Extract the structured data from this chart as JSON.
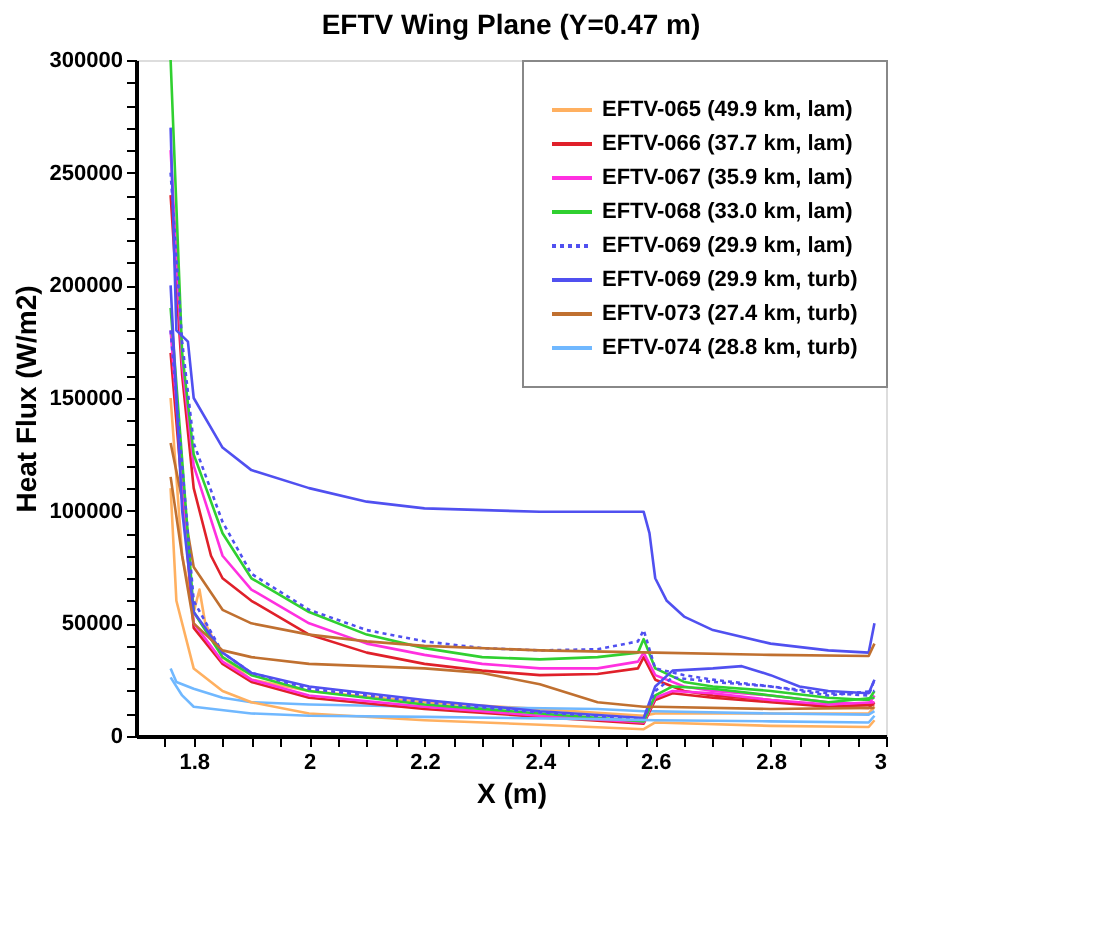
{
  "chart_data": {
    "type": "line",
    "title": "EFTV Wing Plane (Y=0.47 m)",
    "xlabel": "X (m)",
    "ylabel": "Heat Flux (W/m2)",
    "xlim": [
      1.7,
      3
    ],
    "ylim": [
      0,
      300000
    ],
    "xticks": [
      {
        "value": 1.75,
        "label": null
      },
      1.8,
      {
        "value": 1.85,
        "label": null
      },
      {
        "value": 1.9,
        "label": null
      },
      {
        "value": 1.95,
        "label": null
      },
      2,
      {
        "value": 2.05,
        "label": null
      },
      {
        "value": 2.1,
        "label": null
      },
      {
        "value": 2.15,
        "label": null
      },
      2.2,
      {
        "value": 2.25,
        "label": null
      },
      {
        "value": 2.3,
        "label": null
      },
      {
        "value": 2.35,
        "label": null
      },
      2.4,
      {
        "value": 2.45,
        "label": null
      },
      {
        "value": 2.5,
        "label": null
      },
      {
        "value": 2.55,
        "label": null
      },
      2.6,
      {
        "value": 2.65,
        "label": null
      },
      {
        "value": 2.7,
        "label": null
      },
      {
        "value": 2.75,
        "label": null
      },
      2.8,
      {
        "value": 2.85,
        "label": null
      },
      {
        "value": 2.9,
        "label": null
      },
      {
        "value": 2.95,
        "label": null
      },
      3
    ],
    "yticks": [
      0,
      {
        "value": 10000,
        "label": null
      },
      {
        "value": 20000,
        "label": null
      },
      {
        "value": 30000,
        "label": null
      },
      {
        "value": 40000,
        "label": null
      },
      50000,
      {
        "value": 60000,
        "label": null
      },
      {
        "value": 70000,
        "label": null
      },
      {
        "value": 80000,
        "label": null
      },
      {
        "value": 90000,
        "label": null
      },
      100000,
      {
        "value": 110000,
        "label": null
      },
      {
        "value": 120000,
        "label": null
      },
      {
        "value": 130000,
        "label": null
      },
      {
        "value": 140000,
        "label": null
      },
      150000,
      {
        "value": 160000,
        "label": null
      },
      {
        "value": 170000,
        "label": null
      },
      {
        "value": 180000,
        "label": null
      },
      {
        "value": 190000,
        "label": null
      },
      200000,
      {
        "value": 210000,
        "label": null
      },
      {
        "value": 220000,
        "label": null
      },
      {
        "value": 230000,
        "label": null
      },
      {
        "value": 240000,
        "label": null
      },
      250000,
      {
        "value": 260000,
        "label": null
      },
      {
        "value": 270000,
        "label": null
      },
      {
        "value": 280000,
        "label": null
      },
      {
        "value": 290000,
        "label": null
      },
      300000
    ],
    "grid": false,
    "legend": "top right",
    "series": [
      {
        "name": "EFTV-065 (49.9 km, lam)",
        "color": "#ffb060",
        "x": [
          1.76,
          1.78,
          1.8,
          1.81,
          1.82,
          1.85,
          1.9,
          2.0,
          2.2,
          2.4,
          2.58,
          2.6,
          2.8,
          2.97,
          2.98
        ],
        "values": [
          150000,
          80000,
          55000,
          65000,
          50000,
          35000,
          25000,
          20000,
          15000,
          12000,
          9000,
          10000,
          10000,
          10000,
          13000
        ]
      },
      {
        "name": "EFTV-066 (37.7 km, lam)",
        "color": "#e0202a",
        "x": [
          1.76,
          1.78,
          1.8,
          1.83,
          1.85,
          1.9,
          2.0,
          2.1,
          2.2,
          2.3,
          2.4,
          2.5,
          2.57,
          2.58,
          2.6,
          2.65,
          2.7,
          2.8,
          2.9,
          2.97,
          2.98
        ],
        "values": [
          240000,
          160000,
          110000,
          80000,
          70000,
          60000,
          45000,
          37000,
          32000,
          29000,
          27000,
          27500,
          30000,
          35000,
          25000,
          20000,
          18000,
          16000,
          13000,
          12500,
          15000
        ]
      },
      {
        "name": "EFTV-067 (35.9 km, lam)",
        "color": "#ff30e0",
        "x": [
          1.76,
          1.78,
          1.8,
          1.85,
          1.9,
          2.0,
          2.1,
          2.2,
          2.3,
          2.4,
          2.5,
          2.57,
          2.58,
          2.6,
          2.65,
          2.7,
          2.8,
          2.9,
          2.97,
          2.98
        ],
        "values": [
          260000,
          165000,
          120000,
          80000,
          65000,
          50000,
          41000,
          36000,
          32000,
          30000,
          30000,
          33000,
          37000,
          27000,
          22000,
          20000,
          18000,
          15000,
          14000,
          18000
        ]
      },
      {
        "name": "EFTV-068 (33.0 km, lam)",
        "color": "#30d030",
        "x": [
          1.76,
          1.78,
          1.8,
          1.85,
          1.9,
          2.0,
          2.1,
          2.2,
          2.3,
          2.4,
          2.5,
          2.57,
          2.58,
          2.6,
          2.65,
          2.7,
          2.8,
          2.9,
          2.97,
          2.98
        ],
        "values": [
          300000,
          170000,
          125000,
          90000,
          70000,
          55000,
          45000,
          39000,
          35000,
          34000,
          35000,
          37000,
          43000,
          30000,
          24000,
          22000,
          20000,
          17000,
          16000,
          20000
        ]
      },
      {
        "name": "EFTV-069 (29.9 km, lam)",
        "color": "#5050f0",
        "line_style": "dotted",
        "x": [
          1.76,
          1.78,
          1.8,
          1.85,
          1.9,
          2.0,
          2.1,
          2.2,
          2.3,
          2.4,
          2.5,
          2.57,
          2.58,
          2.6,
          2.65,
          2.7,
          2.8,
          2.9,
          2.97,
          2.98
        ],
        "values": [
          250000,
          175000,
          130000,
          95000,
          72000,
          56000,
          47000,
          42000,
          39000,
          38000,
          38500,
          42000,
          47000,
          30000,
          27000,
          25000,
          22000,
          19000,
          18000,
          25000
        ]
      },
      {
        "name": "EFTV-069 (29.9 km, turb)",
        "color": "#5050f0",
        "x": [
          1.76,
          1.77,
          1.79,
          1.8,
          1.85,
          1.9,
          2.0,
          2.1,
          2.2,
          2.4,
          2.58,
          2.59,
          2.6,
          2.62,
          2.65,
          2.7,
          2.8,
          2.9,
          2.97,
          2.98
        ],
        "values": [
          270000,
          180000,
          175000,
          150000,
          128000,
          118000,
          110000,
          104000,
          101000,
          99500,
          99500,
          90000,
          70000,
          60000,
          53000,
          47000,
          41000,
          38000,
          37000,
          50000
        ]
      },
      {
        "name": "EFTV-073 (27.4 km, turb)",
        "color": "#c07030",
        "x": [
          1.76,
          1.78,
          1.8,
          1.85,
          1.9,
          2.0,
          2.1,
          2.2,
          2.4,
          2.6,
          2.8,
          2.97,
          2.98
        ],
        "values": [
          130000,
          105000,
          75000,
          56000,
          50000,
          45000,
          42000,
          40000,
          38000,
          37000,
          36000,
          35500,
          41000
        ]
      },
      {
        "name": "EFTV-074 (28.8 km, turb)",
        "color": "#70b8ff",
        "x": [
          1.76,
          1.77,
          1.8,
          1.85,
          1.9,
          2.0,
          2.2,
          2.5,
          2.58,
          2.6,
          2.8,
          2.97,
          2.98
        ],
        "values": [
          30000,
          24000,
          21000,
          17000,
          15000,
          14000,
          13000,
          12000,
          11000,
          11000,
          10000,
          9500,
          11000
        ]
      },
      {
        "color": "#ffb060",
        "x": [
          1.76,
          1.77,
          1.8,
          1.85,
          1.9,
          2.0,
          2.2,
          2.4,
          2.58,
          2.6,
          2.8,
          2.97,
          2.98
        ],
        "values": [
          110000,
          60000,
          30000,
          20000,
          15000,
          10000,
          7000,
          5000,
          3000,
          6000,
          4500,
          4000,
          7000
        ]
      },
      {
        "color": "#e0202a",
        "x": [
          1.76,
          1.8,
          1.85,
          1.9,
          2.0,
          2.2,
          2.4,
          2.58,
          2.6,
          2.63,
          2.7,
          2.8,
          2.9,
          2.98
        ],
        "values": [
          170000,
          48000,
          32000,
          24000,
          17000,
          12000,
          8500,
          5500,
          16000,
          19000,
          17000,
          15000,
          13000,
          14000
        ]
      },
      {
        "color": "#ff30e0",
        "x": [
          1.76,
          1.8,
          1.85,
          1.9,
          2.0,
          2.2,
          2.4,
          2.58,
          2.6,
          2.63,
          2.7,
          2.8,
          2.9,
          2.98
        ],
        "values": [
          180000,
          50000,
          33000,
          25000,
          18000,
          13000,
          9000,
          6000,
          17000,
          20000,
          19000,
          16000,
          14000,
          15000
        ]
      },
      {
        "color": "#30d030",
        "x": [
          1.76,
          1.8,
          1.85,
          1.9,
          2.0,
          2.2,
          2.4,
          2.58,
          2.6,
          2.63,
          2.7,
          2.8,
          2.9,
          2.98
        ],
        "values": [
          190000,
          55000,
          35000,
          27000,
          20000,
          14000,
          10000,
          6500,
          18000,
          22000,
          21000,
          18000,
          15000,
          17000
        ]
      },
      {
        "color": "#5050f0",
        "line_style": "dotted",
        "x": [
          1.76,
          1.8,
          1.85,
          1.9,
          2.0,
          2.2,
          2.4,
          2.58,
          2.6,
          2.63,
          2.7,
          2.8,
          2.9,
          2.98
        ],
        "values": [
          180000,
          60000,
          37000,
          28000,
          21000,
          15000,
          10500,
          7500,
          20000,
          26000,
          24000,
          22000,
          18000,
          20000
        ]
      },
      {
        "color": "#5050f0",
        "x": [
          1.76,
          1.78,
          1.8,
          1.82,
          1.85,
          1.9,
          2.0,
          2.2,
          2.4,
          2.58,
          2.6,
          2.63,
          2.7,
          2.75,
          2.8,
          2.85,
          2.9,
          2.97,
          2.98
        ],
        "values": [
          200000,
          100000,
          55000,
          48000,
          37000,
          28000,
          22000,
          16000,
          11000,
          8000,
          22000,
          29000,
          30000,
          31000,
          27000,
          22000,
          20000,
          19000,
          25000
        ]
      },
      {
        "color": "#c07030",
        "x": [
          1.76,
          1.78,
          1.8,
          1.85,
          1.9,
          2.0,
          2.2,
          2.3,
          2.4,
          2.5,
          2.58,
          2.6,
          2.8,
          2.98
        ],
        "values": [
          115000,
          80000,
          50000,
          38000,
          35000,
          32000,
          30000,
          28000,
          23000,
          15000,
          13000,
          13000,
          12000,
          12500
        ]
      },
      {
        "color": "#70b8ff",
        "x": [
          1.76,
          1.78,
          1.8,
          1.9,
          2.0,
          2.2,
          2.5,
          2.6,
          2.8,
          2.97,
          2.98
        ],
        "values": [
          26000,
          18000,
          13000,
          10000,
          9000,
          8500,
          7500,
          7000,
          6500,
          6000,
          9000
        ]
      }
    ]
  }
}
